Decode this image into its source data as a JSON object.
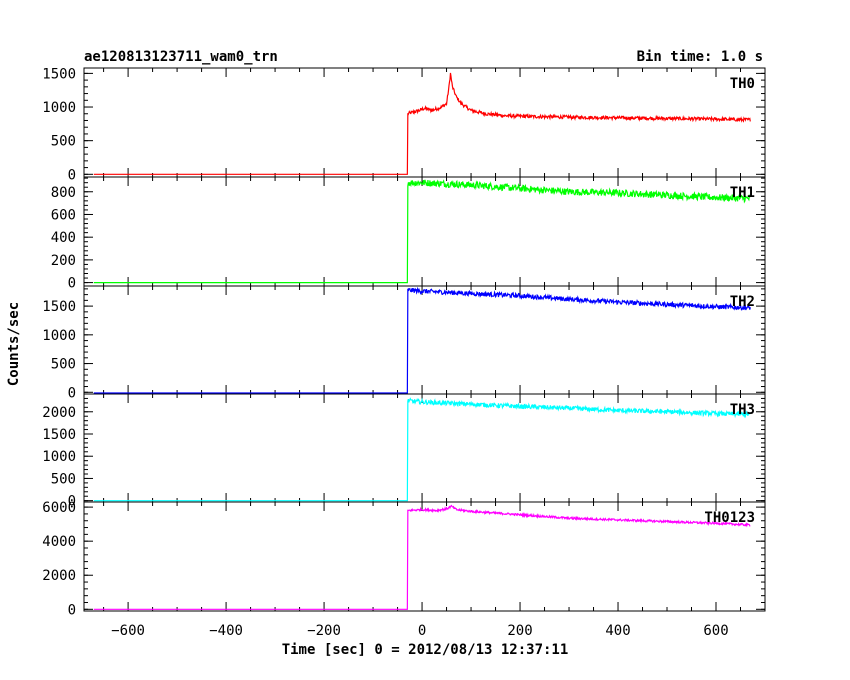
{
  "chart_data": {
    "type": "line",
    "title": "ae120813123711_wam0_trn",
    "bin_time": "Bin time: 1.0 s",
    "xlabel": "Time [sec] 0 = 2012/08/13 12:37:11",
    "ylabel": "Counts/sec",
    "xlim": [
      -690,
      700
    ],
    "xticks": [
      -600,
      -400,
      -200,
      0,
      200,
      400,
      600
    ],
    "xtick_labels": [
      "−600",
      "−400",
      "−200",
      "0",
      "200",
      "400",
      "600"
    ],
    "grid": false,
    "panels": [
      {
        "name": "TH0",
        "color": "#ff0000",
        "ylim": [
          -40,
          1580
        ],
        "yticks": [
          0,
          500,
          1000,
          1500
        ],
        "ytick_labels": [
          "0",
          "500",
          "1000",
          "1500"
        ],
        "x": [
          -670,
          -30,
          -29,
          -20,
          -5,
          5,
          20,
          40,
          50,
          55,
          58,
          62,
          70,
          80,
          100,
          130,
          170,
          220,
          300,
          400,
          500,
          600,
          670
        ],
        "y": [
          0,
          0,
          900,
          920,
          950,
          980,
          950,
          1000,
          1050,
          1300,
          1500,
          1300,
          1150,
          1050,
          950,
          900,
          870,
          860,
          850,
          840,
          830,
          820,
          810
        ],
        "noise": 25
      },
      {
        "name": "TH1",
        "color": "#00ff00",
        "ylim": [
          -30,
          930
        ],
        "yticks": [
          0,
          200,
          400,
          600,
          800
        ],
        "ytick_labels": [
          "0",
          "200",
          "400",
          "600",
          "800"
        ],
        "x": [
          -670,
          -30,
          -29,
          0,
          100,
          200,
          300,
          400,
          500,
          600,
          670
        ],
        "y": [
          0,
          0,
          880,
          880,
          860,
          830,
          800,
          790,
          770,
          750,
          740
        ],
        "noise": 30
      },
      {
        "name": "TH2",
        "color": "#0000ff",
        "ylim": [
          -30,
          1850
        ],
        "yticks": [
          0,
          500,
          1000,
          1500
        ],
        "ytick_labels": [
          "0",
          "500",
          "1000",
          "1500"
        ],
        "x": [
          -670,
          -30,
          -29,
          0,
          100,
          200,
          300,
          400,
          500,
          600,
          670
        ],
        "y": [
          -30,
          -30,
          1780,
          1760,
          1720,
          1680,
          1620,
          1570,
          1530,
          1490,
          1470
        ],
        "noise": 40
      },
      {
        "name": "TH3",
        "color": "#00ffff",
        "ylim": [
          -30,
          2400
        ],
        "yticks": [
          0,
          500,
          1000,
          1500,
          2000
        ],
        "ytick_labels": [
          "0",
          "500",
          "1000",
          "1500",
          "2000"
        ],
        "x": [
          -670,
          -30,
          -29,
          0,
          100,
          200,
          300,
          400,
          500,
          600,
          670
        ],
        "y": [
          0,
          0,
          2250,
          2220,
          2170,
          2120,
          2080,
          2030,
          2000,
          1960,
          1940
        ],
        "noise": 50
      },
      {
        "name": "TH0123",
        "color": "#ff00ff",
        "ylim": [
          -100,
          6300
        ],
        "yticks": [
          0,
          2000,
          4000,
          6000
        ],
        "ytick_labels": [
          "0",
          "2000",
          "4000",
          "6000"
        ],
        "x": [
          -670,
          -30,
          -29,
          0,
          30,
          50,
          60,
          70,
          100,
          200,
          300,
          400,
          500,
          600,
          670
        ],
        "y": [
          0,
          0,
          5800,
          5850,
          5800,
          5900,
          6050,
          5850,
          5750,
          5550,
          5350,
          5250,
          5150,
          5050,
          4950
        ],
        "noise": 60
      }
    ]
  }
}
